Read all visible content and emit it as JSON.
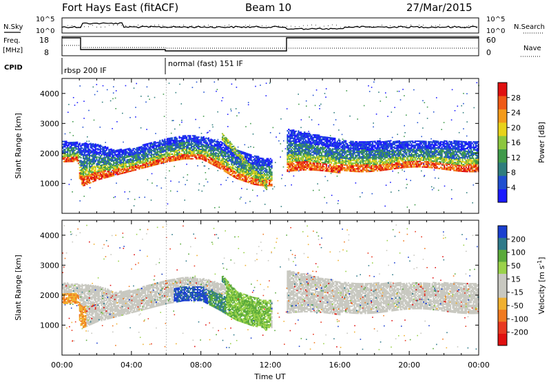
{
  "header": {
    "station": "Fort Hays East (fitACF)",
    "beam": "Beam 10",
    "date": "27/Mar/2015"
  },
  "top_panels": {
    "nsky_label": "N.Sky",
    "nsearch_label": "N.Search",
    "left_tick_hi": "10^5",
    "left_tick_lo": "10^0",
    "right_tick_hi": "10^5",
    "right_tick_lo": "10^0",
    "freq_label_1": "Freq.",
    "freq_label_2": "[MHz]",
    "freq_ticks": [
      "18",
      "8"
    ],
    "nave_label": "Nave",
    "nave_ticks": [
      "60",
      "0"
    ],
    "cpid_label": "CPID",
    "cpid_segments": [
      "rbsp 200 IF",
      "normal (fast) 151 IF"
    ]
  },
  "chart_data": [
    {
      "type": "heatmap",
      "name": "power",
      "ylabel": "Slant Range [km]",
      "xlabel": "Time UT",
      "x_ticks": [
        "00:00",
        "04:00",
        "08:00",
        "12:00",
        "16:00",
        "20:00",
        "00:00"
      ],
      "xlim_hours": [
        0,
        24
      ],
      "ylim_km": [
        0,
        4500
      ],
      "y_ticks": [
        1000,
        2000,
        3000,
        4000
      ],
      "colorbar": {
        "label": "Power [dB]",
        "ticks": [
          "4",
          "8",
          "12",
          "16",
          "20",
          "24",
          "28"
        ],
        "colors": [
          "#1a1aff",
          "#1f4fd0",
          "#2e7d7d",
          "#3f9a4a",
          "#8cc63e",
          "#e8d21a",
          "#f39a1a",
          "#ef5a16",
          "#e01010"
        ]
      },
      "band_lower_km": [
        [
          0,
          1700
        ],
        [
          0.9,
          1720
        ],
        [
          1,
          1000
        ],
        [
          1.2,
          900
        ],
        [
          2,
          1100
        ],
        [
          4,
          1400
        ],
        [
          6,
          1700
        ],
        [
          7,
          1800
        ],
        [
          8,
          1800
        ],
        [
          9,
          1500
        ],
        [
          10,
          1150
        ],
        [
          11,
          950
        ],
        [
          11.6,
          900
        ]
      ],
      "band_upper_km": [
        [
          0,
          2400
        ],
        [
          1,
          2350
        ],
        [
          2,
          2300
        ],
        [
          3,
          2100
        ],
        [
          4,
          2150
        ],
        [
          6,
          2500
        ],
        [
          7,
          2600
        ],
        [
          8,
          2550
        ],
        [
          9,
          2400
        ],
        [
          10,
          2100
        ],
        [
          11,
          1900
        ],
        [
          12,
          1800
        ]
      ]
    },
    {
      "type": "heatmap",
      "name": "velocity",
      "ylabel": "Slant Range [km]",
      "xlabel": "Time UT",
      "x_ticks": [
        "00:00",
        "04:00",
        "08:00",
        "12:00",
        "16:00",
        "20:00",
        "00:00"
      ],
      "xlim_hours": [
        0,
        24
      ],
      "ylim_km": [
        0,
        4500
      ],
      "y_ticks": [
        1000,
        2000,
        3000,
        4000
      ],
      "colorbar": {
        "label": "Velocity [m s^-1]",
        "ticks": [
          "200",
          "100",
          "50",
          "15",
          "-15",
          "-50",
          "-100",
          "-200"
        ],
        "colors": [
          "#1a3fd0",
          "#2f7a8a",
          "#5aaa3a",
          "#9ad24a",
          "#c8c8c0",
          "#c8c8c0",
          "#f0b030",
          "#f07a20",
          "#e83820",
          "#e01010"
        ]
      }
    }
  ]
}
